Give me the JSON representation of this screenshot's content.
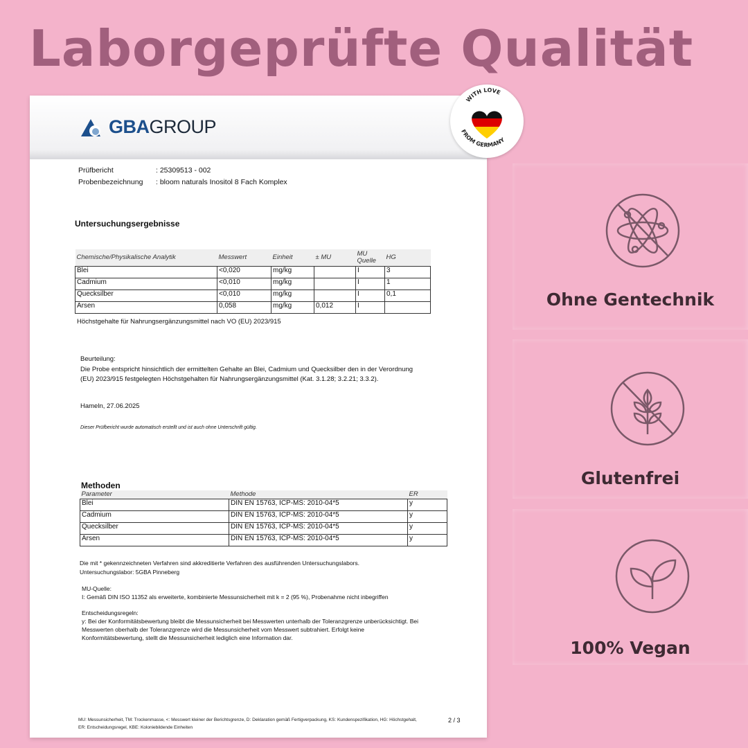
{
  "headline": "Laborgeprüfte Qualität",
  "badge": {
    "line1": "WITH LOVE",
    "line2": "FROM GERMANY"
  },
  "document": {
    "logo": {
      "bold": "GBA",
      "rest": "GROUP"
    },
    "report_label": "Prüfbericht",
    "report_value": ": 25309513 - 002",
    "sample_label": "Probenbezeichnung",
    "sample_value": ": bloom naturals Inositol 8 Fach Komplex",
    "results_heading": "Untersuchungsergebnisse",
    "results_table": {
      "headers": [
        "Chemische/Physikalische Analytik",
        "Messwert",
        "Einheit",
        "± MU",
        "MU Quelle",
        "HG"
      ],
      "rows": [
        [
          "Blei",
          "<0,020",
          "mg/kg",
          "",
          "I",
          "3"
        ],
        [
          "Cadmium",
          "<0,010",
          "mg/kg",
          "",
          "I",
          "1"
        ],
        [
          "Quecksilber",
          "<0,010",
          "mg/kg",
          "",
          "I",
          "0,1"
        ],
        [
          "Arsen",
          "0,058",
          "mg/kg",
          "0,012",
          "I",
          ""
        ]
      ]
    },
    "hg_note": "Höchstgehalte für Nahrungsergänzungsmittel nach VO (EU) 2023/915",
    "assessment_label": "Beurteilung:",
    "assessment_line1": "Die Probe entspricht hinsichtlich der ermittelten Gehalte an Blei, Cadmium und Quecksilber den in der Verordnung",
    "assessment_line2": "(EU) 2023/915 festgelegten Höchstgehalten für Nahrungsergänzungsmittel (Kat. 3.1.28; 3.2.21; 3.3.2).",
    "place_date": "Hameln, 27.06.2025",
    "auto_note": "Dieser Prüfbericht wurde automatisch erstellt und ist auch ohne Unterschrift gültig.",
    "methods_heading": "Methoden",
    "methods_table": {
      "headers": [
        "Parameter",
        "Methode",
        "ER"
      ],
      "rows": [
        [
          "Blei",
          "DIN EN 15763, ICP-MS: 2010-04*5",
          "y"
        ],
        [
          "Cadmium",
          "DIN EN 15763, ICP-MS: 2010-04*5",
          "y"
        ],
        [
          "Quecksilber",
          "DIN EN 15763, ICP-MS: 2010-04*5",
          "y"
        ],
        [
          "Arsen",
          "DIN EN 15763, ICP-MS: 2010-04*5",
          "y"
        ]
      ]
    },
    "accredited_note": "Die mit * gekennzeichneten Verfahren sind akkreditierte Verfahren des ausführenden Untersuchungslabors.",
    "lab": "Untersuchungslabor: 5GBA Pinneberg",
    "mu_label": "MU-Quelle:",
    "mu_text": "I: Gemäß DIN ISO 11352 als erweiterte, kombinierte Messunsicherheit mit k = 2 (95 %), Probenahme nicht inbegriffen",
    "rules_label": "Entscheidungsregeln:",
    "rules_line1": "y: Bei der Konformitätsbewertung bleibt die Messunsicherheit bei Messwerten unterhalb der Toleranzgrenze unberücksichtigt. Bei",
    "rules_line2": "Messwerten oberhalb der Toleranzgrenze wird die Messunsicherheit vom Messwert subtrahiert. Erfolgt keine",
    "rules_line3": "Konformitätsbewertung, stellt die Messunsicherheit lediglich eine Information dar.",
    "footer_line1": "MU: Messunsicherheit, TM: Trockenmasse, <: Messwert kleiner der Berichtsgrenze, D: Deklaration gemäß Fertigverpackung, KS: Kundenspezifikation, HG: Höchstgehalt,",
    "footer_line2": "ER: Entscheidungsregel, KBE: Koloniebildende Einheiten",
    "page": "2 / 3"
  },
  "features": [
    {
      "label": "Ohne Gentechnik",
      "icon": "no-gmo-atom-icon"
    },
    {
      "label": "Glutenfrei",
      "icon": "gluten-free-wheat-icon"
    },
    {
      "label": "100% Vegan",
      "icon": "vegan-leaf-icon"
    }
  ],
  "colors": {
    "background": "#f4b3cb",
    "headline": "#a15f7d",
    "icon": "#7a5868",
    "feature_text": "#3e2a33",
    "logo_blue": "#1c4f8c"
  }
}
